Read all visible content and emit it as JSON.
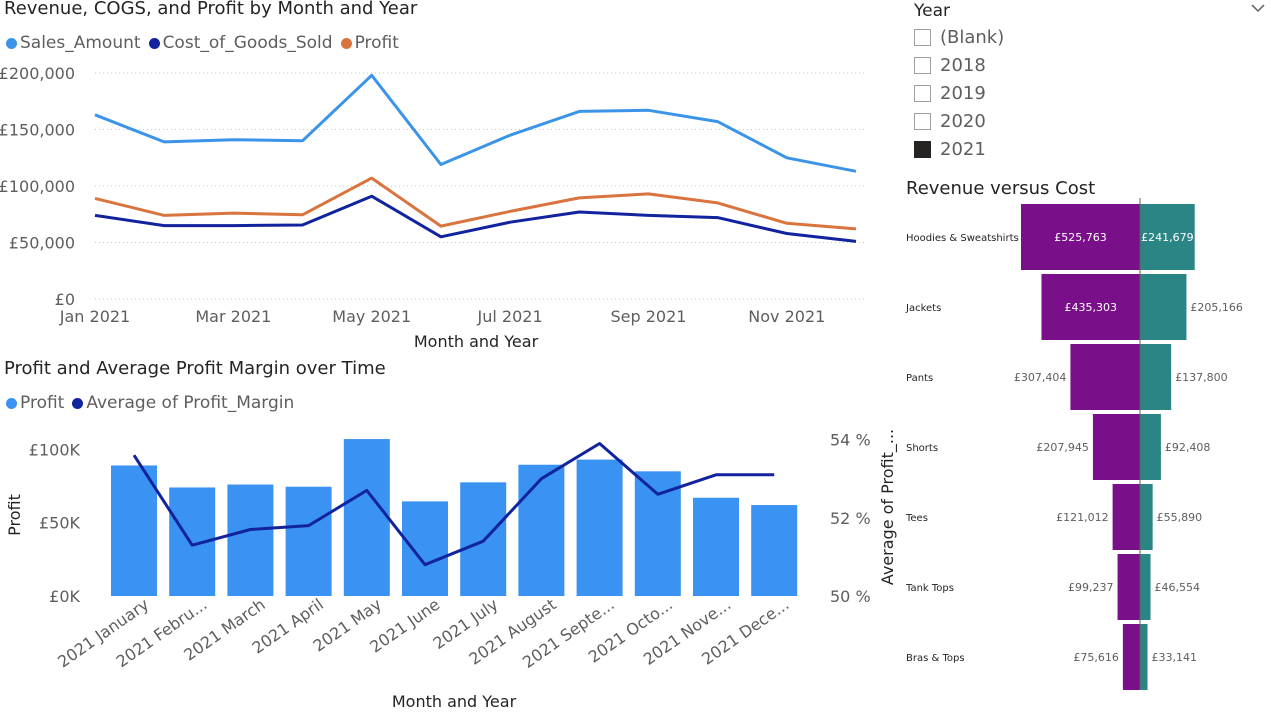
{
  "colors": {
    "sales": "#3b94e8",
    "cogs": "#12239e",
    "profit_line": "#d9743e",
    "profit_bar": "#3a92f2",
    "margin_line": "#12239e",
    "revenue_bar": "#7a0f8a",
    "cost_bar": "#2b8585",
    "grid": "#c8c6c4",
    "axis_text": "#605e5c"
  },
  "slicer": {
    "title": "Year",
    "items": [
      {
        "label": "(Blank)",
        "checked": false
      },
      {
        "label": "2018",
        "checked": false
      },
      {
        "label": "2019",
        "checked": false
      },
      {
        "label": "2020",
        "checked": false
      },
      {
        "label": "2021",
        "checked": true
      }
    ],
    "dropdown_icon": "chevron-down-icon"
  },
  "chart_data": [
    {
      "type": "line",
      "title": "Revenue, COGS, and Profit by Month and Year",
      "xlabel": "Month and Year",
      "ylabel": "",
      "ylim": [
        0,
        200000
      ],
      "yticks": [
        "£0",
        "£50,000",
        "£100,000",
        "£150,000",
        "£200,000"
      ],
      "x_ticklabels": [
        "Jan 2021",
        "Mar 2021",
        "May 2021",
        "Jul 2021",
        "Sep 2021",
        "Nov 2021"
      ],
      "legend_position": "top-left",
      "categories": [
        "Jan 2021",
        "Feb 2021",
        "Mar 2021",
        "Apr 2021",
        "May 2021",
        "Jun 2021",
        "Jul 2021",
        "Aug 2021",
        "Sep 2021",
        "Oct 2021",
        "Nov 2021",
        "Dec 2021"
      ],
      "series": [
        {
          "name": "Sales_Amount",
          "values": [
            163000,
            139000,
            141000,
            140000,
            198000,
            119000,
            145000,
            166000,
            167000,
            157000,
            125000,
            113000
          ]
        },
        {
          "name": "Cost_of_Goods_Sold",
          "values": [
            74000,
            65000,
            65000,
            65500,
            91000,
            55000,
            68000,
            77000,
            74000,
            72000,
            58000,
            51000
          ]
        },
        {
          "name": "Profit",
          "values": [
            89000,
            74000,
            76000,
            74500,
            107000,
            64500,
            77500,
            89500,
            93000,
            85000,
            67000,
            62000
          ]
        }
      ]
    },
    {
      "type": "bar",
      "title": "Profit and Average Profit Margin over Time",
      "xlabel": "Month and Year",
      "ylabel": "Profit",
      "y2label": "Average of Profit_...",
      "ylim": [
        0,
        120000
      ],
      "y2lim": [
        50,
        54.5
      ],
      "yticks": [
        "£0K",
        "£50K",
        "£100K"
      ],
      "y2ticks": [
        "50 %",
        "52 %",
        "54 %"
      ],
      "legend_position": "top-left",
      "categories": [
        "2021 January",
        "2021 Febru...",
        "2021 March",
        "2021 April",
        "2021 May",
        "2021 June",
        "2021 July",
        "2021 August",
        "2021 Septe...",
        "2021 Octo...",
        "2021 Nove...",
        "2021 Dece..."
      ],
      "series": [
        {
          "name": "Profit",
          "values": [
            89000,
            74000,
            76000,
            74500,
            107000,
            64500,
            77500,
            89500,
            93000,
            85000,
            67000,
            62000
          ]
        },
        {
          "name": "Average of Profit_Margin",
          "values": [
            53.6,
            51.3,
            51.7,
            51.8,
            52.7,
            50.8,
            51.4,
            53.0,
            53.9,
            52.6,
            53.1,
            53.1
          ]
        }
      ]
    },
    {
      "type": "bar",
      "title": "Revenue versus Cost",
      "orientation": "horizontal-diverging",
      "categories": [
        "Hoodies & Sweatshirts",
        "Jackets",
        "Pants",
        "Shorts",
        "Tees",
        "Tank Tops",
        "Bras & Tops"
      ],
      "series": [
        {
          "name": "Revenue",
          "values": [
            525763,
            435303,
            307404,
            207945,
            121012,
            99237,
            75616
          ],
          "labels": [
            "£525,763",
            "£435,303",
            "£307,404",
            "£207,945",
            "£121,012",
            "£99,237",
            "£75,616"
          ]
        },
        {
          "name": "Cost",
          "values": [
            241679,
            205166,
            137800,
            92408,
            55890,
            46554,
            33141
          ],
          "labels": [
            "£241,679",
            "£205,166",
            "£137,800",
            "£92,408",
            "£55,890",
            "£46,554",
            "£33,141"
          ]
        }
      ]
    }
  ]
}
